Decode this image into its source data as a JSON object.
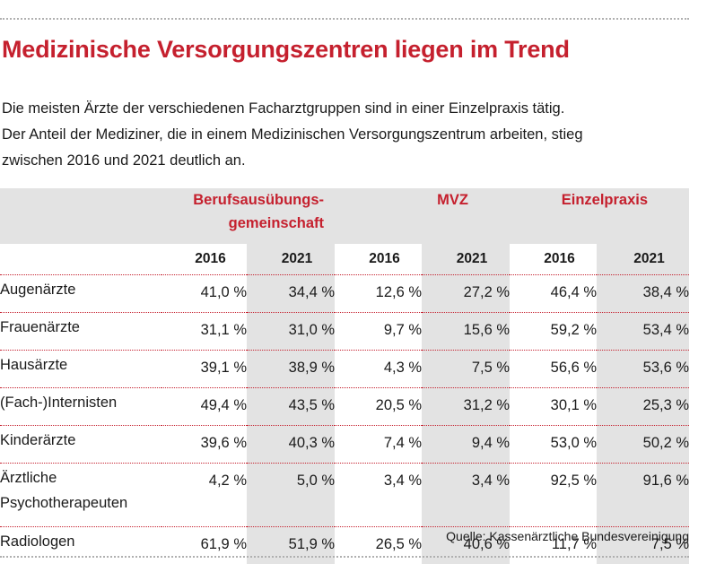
{
  "title": "Medizinische Versorgungszentren liegen im Trend",
  "intro": [
    "Die meisten Ärzte der verschiedenen Facharztgruppen sind in einer Einzelpraxis tätig.",
    "Der Anteil der Mediziner, die in einem Medizinischen Versorgungszentrum arbeiten, stieg",
    "zwischen 2016 und 2021 deutlich an."
  ],
  "groups": [
    "Berufsausübungs-",
    "gemeinschaft",
    "MVZ",
    "Einzelpraxis"
  ],
  "years": [
    "2016",
    "2021",
    "2016",
    "2021",
    "2016",
    "2021"
  ],
  "rows": [
    {
      "label": "Augenärzte",
      "values": [
        "41,0 %",
        "34,4 %",
        "12,6 %",
        "27,2 %",
        "46,4 %",
        "38,4 %"
      ]
    },
    {
      "label": "Frauenärzte",
      "values": [
        "31,1 %",
        "31,0 %",
        "9,7 %",
        "15,6 %",
        "59,2 %",
        "53,4 %"
      ]
    },
    {
      "label": "Hausärzte",
      "values": [
        "39,1 %",
        "38,9 %",
        "4,3 %",
        "7,5 %",
        "56,6 %",
        "53,6 %"
      ]
    },
    {
      "label": "(Fach-)Internisten",
      "values": [
        "49,4 %",
        "43,5 %",
        "20,5 %",
        "31,2 %",
        "30,1 %",
        "25,3 %"
      ]
    },
    {
      "label": "Kinderärzte",
      "values": [
        "39,6 %",
        "40,3 %",
        "7,4 %",
        "9,4 %",
        "53,0 %",
        "50,2 %"
      ]
    },
    {
      "label": "Ärztliche Psychotherapeuten",
      "values": [
        "4,2 %",
        "5,0 %",
        "3,4 %",
        "3,4 %",
        "92,5 %",
        "91,6 %"
      ]
    },
    {
      "label": "Radiologen",
      "values": [
        "61,9 %",
        "51,9 %",
        "26,5 %",
        "40,6 %",
        "11,7 %",
        "7,5 %"
      ]
    }
  ],
  "source": "Quelle: Kassenärztliche Bundesvereinigung",
  "colors": {
    "accent": "#c5202e",
    "shade": "#e3e3e3"
  }
}
